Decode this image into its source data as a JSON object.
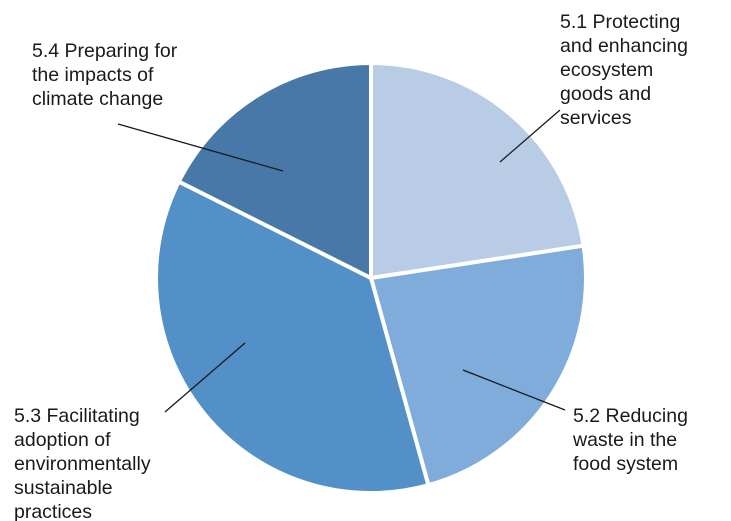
{
  "chart_data": {
    "type": "pie",
    "title": "",
    "slices": [
      {
        "label": [
          "5.1 Protecting",
          "and enhancing",
          "ecosystem",
          "goods and",
          "services"
        ],
        "value": 22.6,
        "color": "#b8cce6"
      },
      {
        "label": [
          "5.2 Reducing",
          "waste in the",
          "food system"
        ],
        "value": 23.1,
        "color": "#80acdb"
      },
      {
        "label": [
          "5.3 Facilitating",
          "adoption of",
          "environmentally",
          "sustainable",
          "practices"
        ],
        "value": 36.7,
        "color": "#5390c8"
      },
      {
        "label": [
          "5.4 Preparing for",
          "the impacts of",
          "climate change"
        ],
        "value": 17.6,
        "color": "#4878a8"
      }
    ]
  }
}
